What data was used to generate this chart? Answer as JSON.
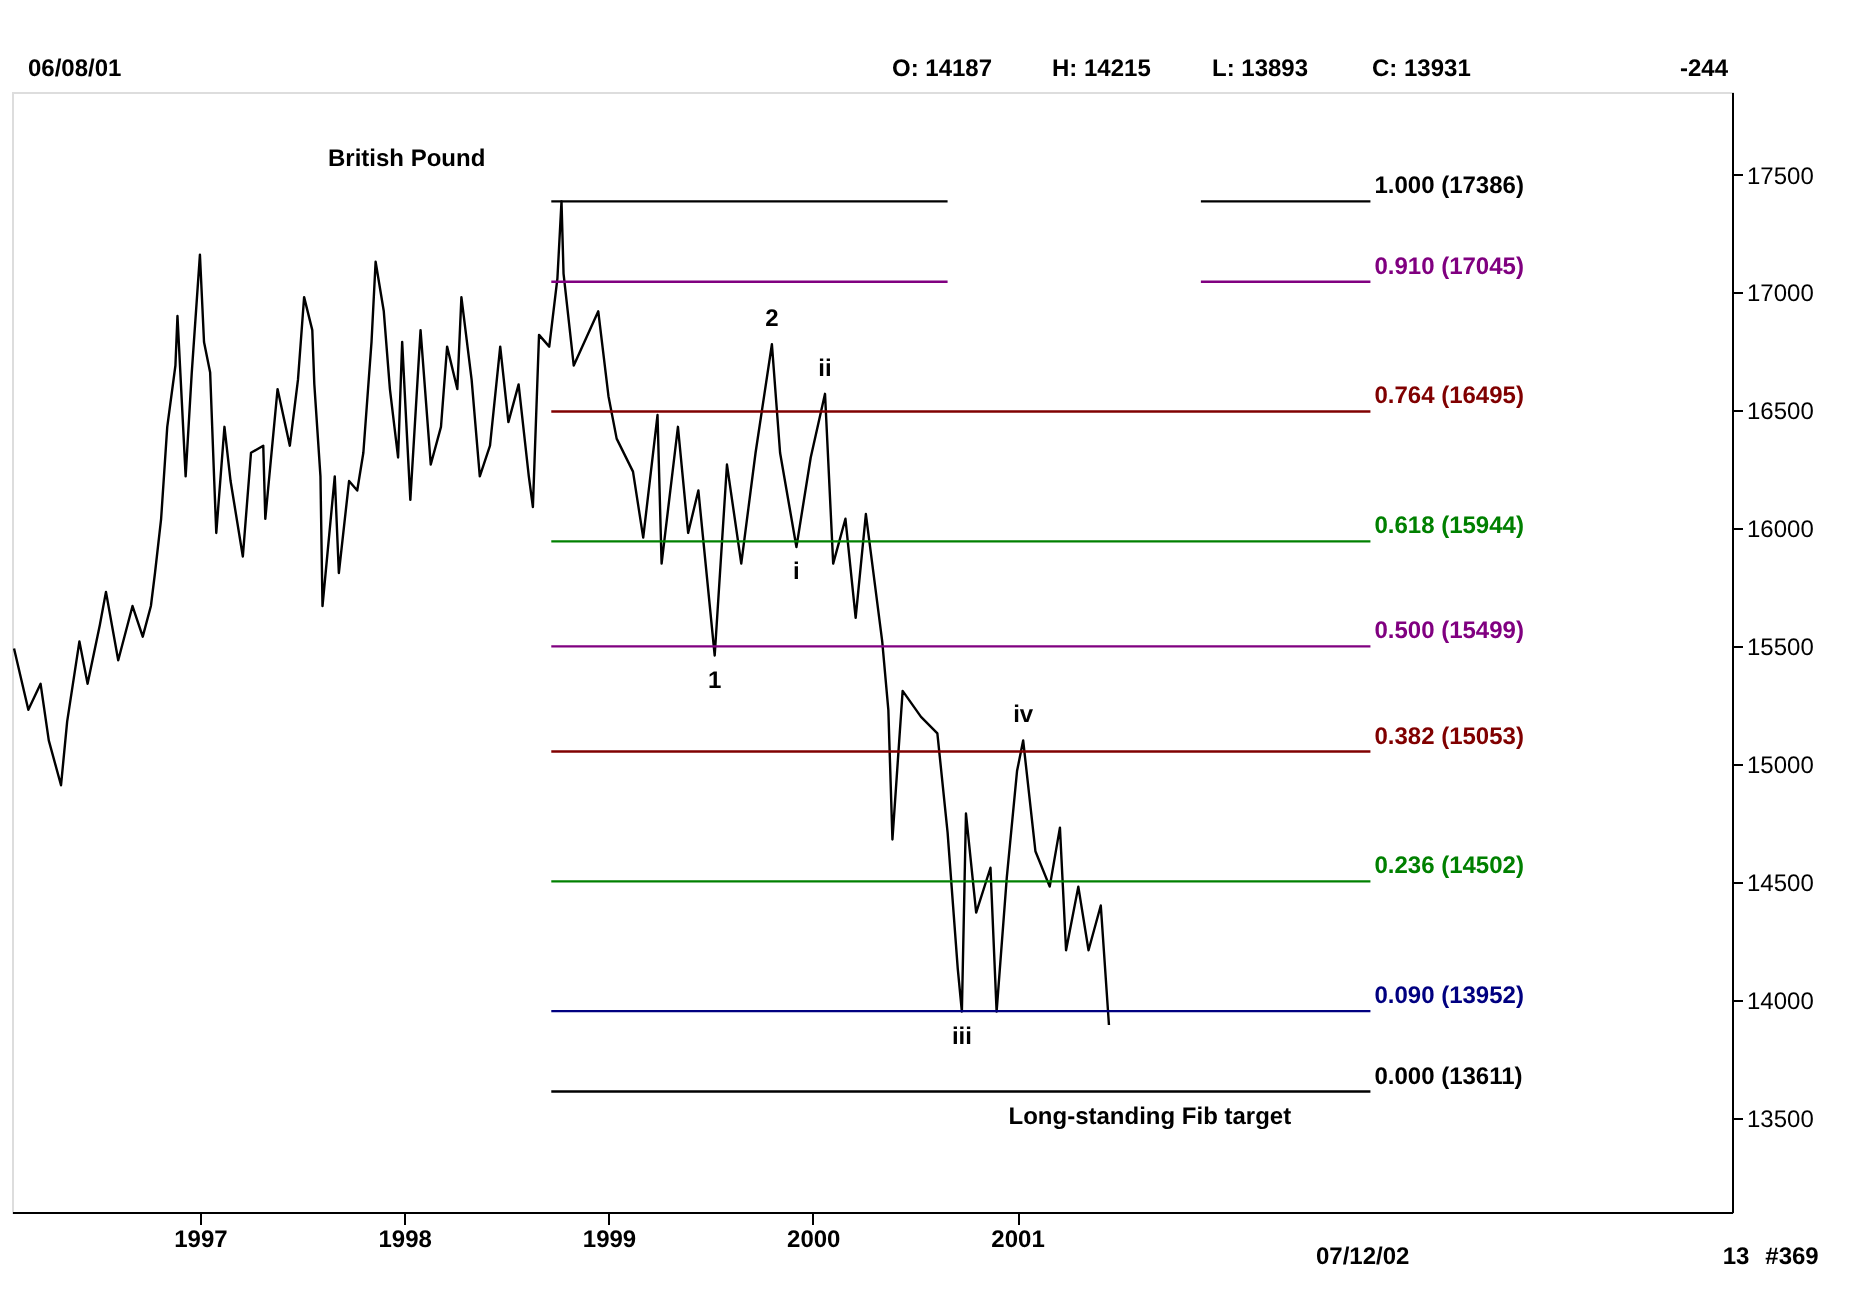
{
  "chart_data": {
    "type": "line",
    "title": "British Pound",
    "xlim": [
      1996.08,
      2004.5
    ],
    "xticks": [
      1997,
      1998,
      1999,
      2000,
      2001
    ],
    "ylim": [
      13100,
      17850
    ],
    "yticks": [
      13500,
      14000,
      14500,
      15000,
      15500,
      16000,
      16500,
      17000,
      17500
    ],
    "grid": false,
    "series": [
      {
        "color": "#000000",
        "x": [
          1996.09,
          1996.16,
          1996.22,
          1996.26,
          1996.32,
          1996.35,
          1996.41,
          1996.45,
          1996.51,
          1996.54,
          1996.6,
          1996.67,
          1996.72,
          1996.76,
          1996.78,
          1996.81,
          1996.84,
          1996.88,
          1996.89,
          1996.93,
          1996.96,
          1997.0,
          1997.02,
          1997.05,
          1997.07,
          1997.08,
          1997.12,
          1997.15,
          1997.21,
          1997.25,
          1997.31,
          1997.32,
          1997.38,
          1997.44,
          1997.48,
          1997.51,
          1997.55,
          1997.56,
          1997.59,
          1997.6,
          1997.66,
          1997.68,
          1997.73,
          1997.77,
          1997.8,
          1997.84,
          1997.86,
          1997.9,
          1997.93,
          1997.97,
          1997.99,
          1998.01,
          1998.03,
          1998.08,
          1998.13,
          1998.18,
          1998.21,
          1998.26,
          1998.28,
          1998.33,
          1998.37,
          1998.42,
          1998.47,
          1998.51,
          1998.56,
          1998.61,
          1998.63,
          1998.66,
          1998.71,
          1998.75,
          1998.77,
          1998.78,
          1998.83,
          1998.95,
          1999.0,
          1999.04,
          1999.12,
          1999.17,
          1999.24,
          1999.26,
          1999.34,
          1999.39,
          1999.44,
          1999.52,
          1999.58,
          1999.65,
          1999.72,
          1999.8,
          1999.84,
          1999.92,
          1999.99,
          2000.06,
          2000.1,
          2000.16,
          2000.21,
          2000.26,
          2000.34,
          2000.37,
          2000.39,
          2000.44,
          2000.53,
          2000.61,
          2000.66,
          2000.71,
          2000.73,
          2000.75,
          2000.8,
          2000.87,
          2000.9,
          2000.95,
          2001.0,
          2001.03,
          2001.09,
          2001.16,
          2001.21,
          2001.24,
          2001.3,
          2001.35,
          2001.41,
          2001.45
        ],
        "values": [
          15490,
          15230,
          15340,
          15100,
          14910,
          15180,
          15520,
          15340,
          15590,
          15730,
          15440,
          15670,
          15540,
          15670,
          15810,
          16040,
          16430,
          16690,
          16900,
          16220,
          16660,
          17160,
          16790,
          16660,
          16200,
          15980,
          16430,
          16200,
          15880,
          16320,
          16350,
          16040,
          16590,
          16350,
          16630,
          16980,
          16840,
          16610,
          16220,
          15670,
          16220,
          15810,
          16200,
          16160,
          16320,
          16790,
          17130,
          16920,
          16590,
          16300,
          16790,
          16450,
          16120,
          16840,
          16270,
          16430,
          16770,
          16590,
          16980,
          16630,
          16220,
          16350,
          16770,
          16450,
          16610,
          16220,
          16090,
          16820,
          16770,
          17060,
          17386,
          17080,
          16690,
          16920,
          16560,
          16380,
          16240,
          15960,
          16480,
          15850,
          16430,
          15980,
          16160,
          15460,
          16270,
          15850,
          16320,
          16780,
          16320,
          15920,
          16300,
          16570,
          15850,
          16040,
          15620,
          16060,
          15520,
          15230,
          14680,
          15310,
          15200,
          15130,
          14710,
          14130,
          13950,
          14790,
          14370,
          14560,
          13950,
          14520,
          14970,
          15100,
          14630,
          14480,
          14730,
          14210,
          14480,
          14210,
          14400,
          13893
        ]
      },
      {
        "name": "1.000 (17386)",
        "color": "#000000",
        "x": [
          1998.72,
          2000.66,
          2001.3,
          2001.9,
          2002.73
        ],
        "values": [
          17386,
          17386,
          null,
          17386,
          17386
        ]
      },
      {
        "name": "0.910 (17045)",
        "color": "#800080",
        "x": [
          1998.72,
          2000.66,
          2001.3,
          2001.9,
          2002.73
        ],
        "values": [
          17045,
          17045,
          null,
          17045,
          17045
        ]
      },
      {
        "name": "0.764 (16495)",
        "color": "#800000",
        "x": [
          1998.72,
          2002.73
        ],
        "values": [
          16495,
          16495
        ]
      },
      {
        "name": "0.618 (15944)",
        "color": "#008000",
        "x": [
          1998.72,
          2002.73
        ],
        "values": [
          15944,
          15944
        ]
      },
      {
        "name": "0.500 (15499)",
        "color": "#800080",
        "x": [
          1998.72,
          2002.73
        ],
        "values": [
          15499,
          15499
        ]
      },
      {
        "name": "0.382 (15053)",
        "color": "#800000",
        "x": [
          1998.72,
          2002.73
        ],
        "values": [
          15053,
          15053
        ]
      },
      {
        "name": "0.236 (14502)",
        "color": "#008000",
        "x": [
          1998.72,
          2002.73
        ],
        "values": [
          14502,
          14502
        ]
      },
      {
        "name": "0.090 (13952)",
        "color": "#000080",
        "x": [
          1998.72,
          2002.73
        ],
        "values": [
          13952,
          13952
        ]
      },
      {
        "name": "0.000 (13611)",
        "color": "#000000",
        "x": [
          1998.72,
          2002.73
        ],
        "values": [
          13611,
          13611
        ]
      }
    ],
    "annotations": [
      "06/08/01",
      "O: 14187",
      "H: 14215",
      "L: 13893",
      "C: 13931",
      "-244",
      "07/12/02",
      "#369",
      "13",
      {
        "text": "1",
        "x": 1999.52,
        "y": 15460
      },
      {
        "text": "2",
        "x": 1999.8,
        "y": 16780
      },
      {
        "text": "i",
        "x": 1999.92,
        "y": 15920
      },
      {
        "text": "ii",
        "x": 2000.06,
        "y": 16570
      },
      {
        "text": "iii",
        "x": 2000.73,
        "y": 13950
      },
      {
        "text": "iv",
        "x": 2001.03,
        "y": 15100
      },
      {
        "text": "Long-standing Fib target",
        "x": 2001.65,
        "y": 13611
      }
    ]
  }
}
